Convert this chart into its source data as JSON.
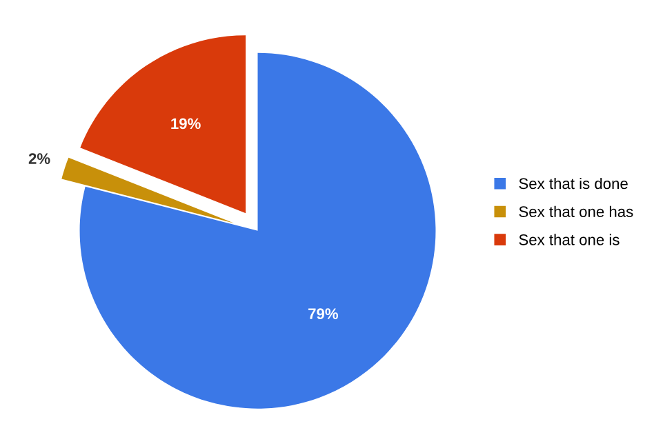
{
  "chart_data": {
    "type": "pie",
    "categories": [
      "Sex that is done",
      "Sex that one has",
      "Sex that one is"
    ],
    "values": [
      79,
      2,
      19
    ],
    "colors": [
      "#3b78e7",
      "#c8900a",
      "#d93a0b"
    ],
    "value_labels": [
      "79%",
      "2%",
      "19%"
    ],
    "legend": "right"
  }
}
